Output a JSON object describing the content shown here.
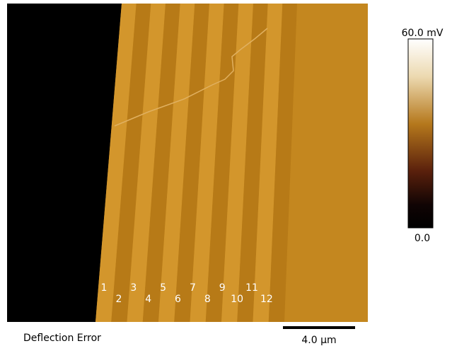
{
  "image": {
    "stripe_labels": [
      "1",
      "2",
      "3",
      "4",
      "5",
      "6",
      "7",
      "8",
      "9",
      "10",
      "11",
      "12"
    ]
  },
  "colorbar": {
    "max_label": "60.0 mV",
    "min_label": "0.0"
  },
  "caption": "Deflection Error",
  "scale_bar": {
    "label": "4.0 µm"
  }
}
